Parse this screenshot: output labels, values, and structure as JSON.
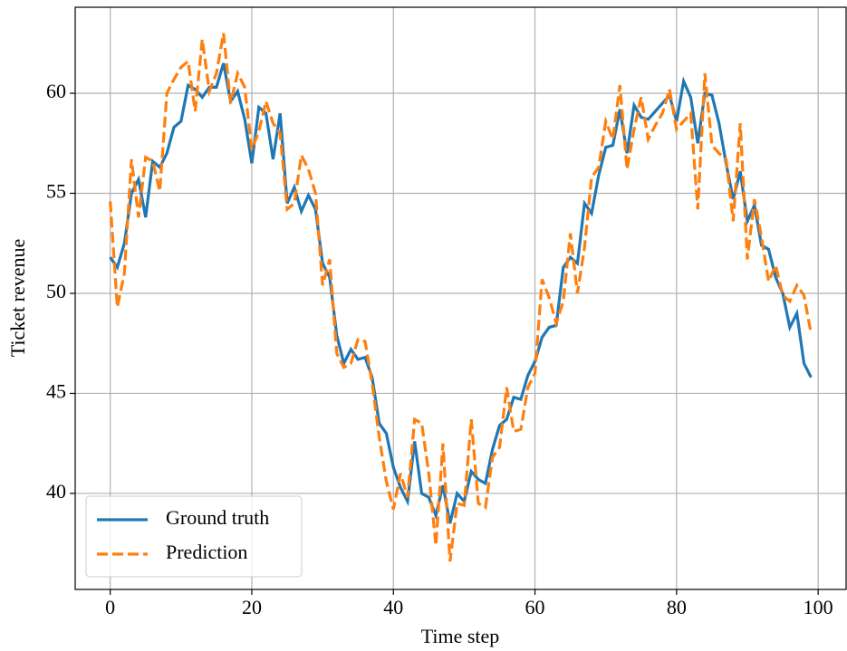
{
  "chart_data": {
    "type": "line",
    "x_label": "Time step",
    "y_label": "Ticket revenue",
    "x": [
      0,
      1,
      2,
      3,
      4,
      5,
      6,
      7,
      8,
      9,
      10,
      11,
      12,
      13,
      14,
      15,
      16,
      17,
      18,
      19,
      20,
      21,
      22,
      23,
      24,
      25,
      26,
      27,
      28,
      29,
      30,
      31,
      32,
      33,
      34,
      35,
      36,
      37,
      38,
      39,
      40,
      41,
      42,
      43,
      44,
      45,
      46,
      47,
      48,
      49,
      50,
      51,
      52,
      53,
      54,
      55,
      56,
      57,
      58,
      59,
      60,
      61,
      62,
      63,
      64,
      65,
      66,
      67,
      68,
      69,
      70,
      71,
      72,
      73,
      74,
      75,
      76,
      77,
      78,
      79,
      80,
      81,
      82,
      83,
      84,
      85,
      86,
      87,
      88,
      89,
      90,
      91,
      92,
      93,
      94,
      95,
      96,
      97,
      98,
      99
    ],
    "series": [
      {
        "name": "Ground truth",
        "color": "#1f77b4",
        "dash": "solid",
        "values": [
          51.8,
          51.3,
          52.5,
          55.0,
          55.7,
          53.8,
          56.6,
          56.3,
          57.0,
          58.3,
          58.6,
          60.4,
          60.2,
          59.8,
          60.3,
          60.3,
          61.5,
          59.6,
          60.1,
          58.7,
          56.5,
          59.3,
          59.0,
          56.7,
          59.0,
          54.5,
          55.3,
          54.1,
          54.9,
          54.2,
          51.5,
          50.8,
          47.9,
          46.5,
          47.2,
          46.7,
          46.8,
          45.8,
          43.5,
          43.0,
          41.3,
          40.3,
          39.6,
          42.6,
          40.0,
          39.8,
          38.9,
          40.4,
          38.5,
          40.0,
          39.6,
          41.1,
          40.7,
          40.5,
          42.2,
          43.4,
          43.7,
          44.8,
          44.7,
          45.9,
          46.6,
          47.8,
          48.3,
          48.4,
          51.3,
          51.8,
          51.5,
          54.5,
          54.0,
          55.9,
          57.3,
          57.4,
          59.2,
          57.0,
          59.4,
          58.8,
          58.7,
          59.1,
          59.5,
          59.9,
          58.6,
          60.6,
          59.8,
          57.5,
          60.0,
          59.9,
          58.5,
          56.5,
          54.7,
          56.1,
          53.6,
          54.4,
          52.4,
          52.2,
          50.8,
          50.0,
          48.3,
          49.0,
          46.5,
          45.8
        ]
      },
      {
        "name": "Prediction",
        "color": "#ff7f0e",
        "dash": "dashed",
        "values": [
          54.6,
          49.3,
          51.0,
          56.7,
          53.8,
          56.8,
          56.6,
          55.1,
          60.0,
          60.7,
          61.3,
          61.6,
          59.1,
          62.7,
          60.1,
          61.0,
          63.0,
          59.5,
          61.0,
          60.3,
          57.2,
          58.1,
          59.6,
          58.5,
          58.0,
          54.2,
          54.5,
          56.9,
          56.2,
          55.0,
          50.4,
          51.7,
          47.0,
          46.3,
          46.5,
          47.7,
          47.6,
          45.5,
          42.8,
          40.6,
          39.2,
          41.0,
          39.8,
          43.7,
          43.5,
          41.0,
          37.4,
          42.5,
          36.6,
          39.5,
          39.4,
          43.7,
          39.5,
          39.3,
          41.8,
          42.3,
          45.3,
          43.1,
          43.2,
          45.3,
          46.0,
          50.7,
          49.8,
          48.5,
          49.6,
          53.0,
          50.0,
          52.3,
          55.8,
          56.3,
          58.6,
          57.7,
          60.4,
          56.2,
          58.2,
          59.8,
          57.7,
          58.4,
          59.0,
          60.2,
          58.2,
          58.6,
          59.0,
          54.2,
          61.0,
          57.4,
          57.0,
          56.7,
          53.6,
          58.5,
          51.7,
          54.7,
          52.8,
          50.6,
          51.4,
          49.9,
          49.6,
          50.4,
          49.9,
          48.0
        ]
      }
    ],
    "xlim": [
      -4.95,
      103.95
    ],
    "ylim": [
      35.2,
      64.3
    ],
    "xticks": [
      0,
      20,
      40,
      60,
      80,
      100
    ],
    "yticks": [
      40,
      45,
      50,
      55,
      60
    ],
    "grid": true,
    "legend": "lower left"
  }
}
